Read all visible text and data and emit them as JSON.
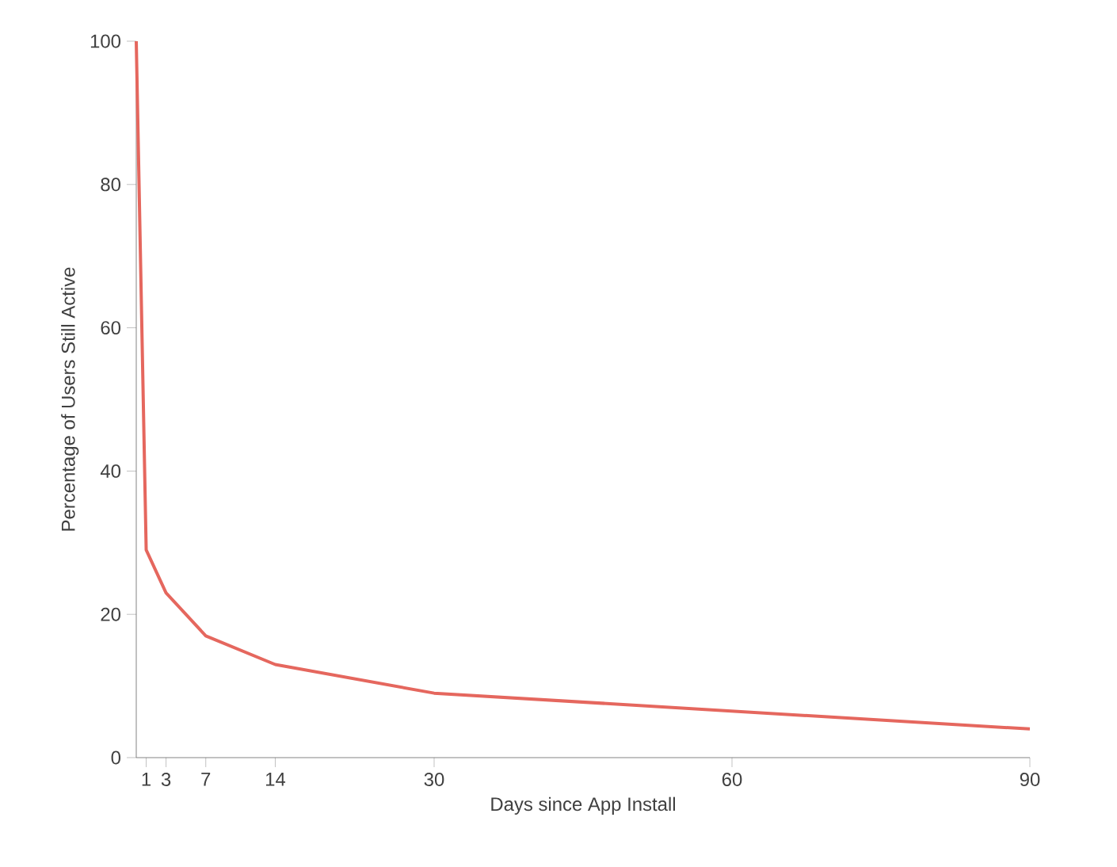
{
  "chart_data": {
    "type": "line",
    "xlabel": "Days since App Install",
    "ylabel": "Percentage of Users Still Active",
    "x": [
      0,
      1,
      3,
      7,
      14,
      30,
      90
    ],
    "series": [
      {
        "color": "#e5675e",
        "values": [
          100,
          29,
          23,
          17,
          13,
          9,
          4
        ]
      }
    ],
    "xlim": [
      0,
      90
    ],
    "xticks": [
      1,
      3,
      7,
      14,
      30,
      60,
      90
    ],
    "ylim": [
      0,
      100
    ],
    "yticks": [
      0,
      20,
      40,
      60,
      80,
      100
    ],
    "grid": false,
    "marker": "none",
    "line_style": "solid"
  }
}
